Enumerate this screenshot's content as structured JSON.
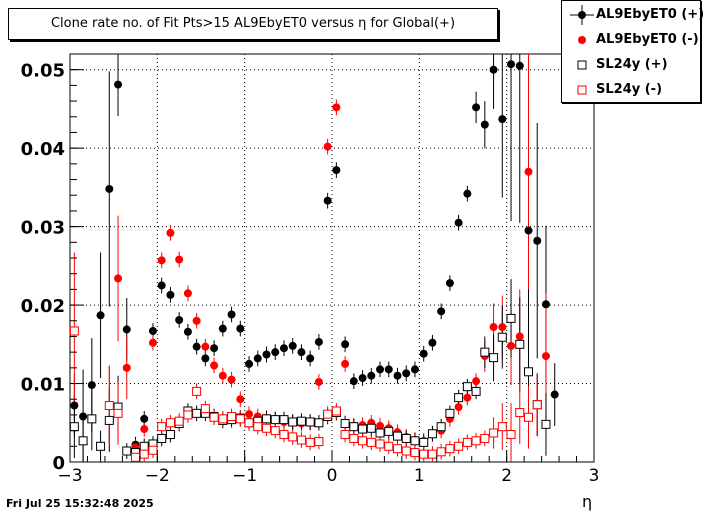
{
  "chart_data": {
    "type": "scatter",
    "title": "Clone rate no. of Fit Pts>15 AL9EbyET0 versus η for Global(+)",
    "xlabel": "η",
    "ylabel": "",
    "xlim": [
      -3,
      3
    ],
    "ylim": [
      0,
      0.052
    ],
    "x_ticks": [
      "−3",
      "−2",
      "−1",
      "0",
      "1",
      "2",
      "3"
    ],
    "y_ticks": [
      "0",
      "0.01",
      "0.02",
      "0.03",
      "0.04",
      "0.05"
    ],
    "grid": true,
    "legend_position": "top-right",
    "series": [
      {
        "name": "AL9EbyET0 (+)",
        "color": "#000000",
        "marker": "filled-circle",
        "points": [
          [
            -2.95,
            0.0072,
            0.004
          ],
          [
            -2.85,
            0.0058,
            0.006
          ],
          [
            -2.75,
            0.0098,
            0.006
          ],
          [
            -2.65,
            0.0187,
            0.008
          ],
          [
            -2.55,
            0.0348,
            0.015
          ],
          [
            -2.45,
            0.0481,
            0.004
          ],
          [
            -2.35,
            0.0169,
            0.004
          ],
          [
            -2.25,
            0.0022,
            0.001
          ],
          [
            -2.15,
            0.0055,
            0.001
          ],
          [
            -2.05,
            0.0167,
            0.001
          ],
          [
            -1.95,
            0.0225,
            0.001
          ],
          [
            -1.85,
            0.0213,
            0.001
          ],
          [
            -1.75,
            0.0181,
            0.001
          ],
          [
            -1.65,
            0.0166,
            0.001
          ],
          [
            -1.55,
            0.0147,
            0.001
          ],
          [
            -1.45,
            0.0132,
            0.001
          ],
          [
            -1.35,
            0.0145,
            0.001
          ],
          [
            -1.25,
            0.017,
            0.001
          ],
          [
            -1.15,
            0.0188,
            0.001
          ],
          [
            -1.05,
            0.017,
            0.001
          ],
          [
            -0.95,
            0.0125,
            0.001
          ],
          [
            -0.85,
            0.0132,
            0.001
          ],
          [
            -0.75,
            0.0137,
            0.001
          ],
          [
            -0.65,
            0.014,
            0.001
          ],
          [
            -0.55,
            0.0145,
            0.001
          ],
          [
            -0.45,
            0.0148,
            0.001
          ],
          [
            -0.35,
            0.014,
            0.001
          ],
          [
            -0.25,
            0.0132,
            0.001
          ],
          [
            -0.15,
            0.0153,
            0.001
          ],
          [
            -0.05,
            0.0333,
            0.001
          ],
          [
            0.05,
            0.0372,
            0.001
          ],
          [
            0.15,
            0.015,
            0.001
          ],
          [
            0.25,
            0.0103,
            0.001
          ],
          [
            0.35,
            0.0107,
            0.001
          ],
          [
            0.45,
            0.011,
            0.001
          ],
          [
            0.55,
            0.0118,
            0.001
          ],
          [
            0.65,
            0.0118,
            0.001
          ],
          [
            0.75,
            0.011,
            0.001
          ],
          [
            0.85,
            0.0113,
            0.001
          ],
          [
            0.95,
            0.0118,
            0.001
          ],
          [
            1.05,
            0.0138,
            0.001
          ],
          [
            1.15,
            0.0152,
            0.001
          ],
          [
            1.25,
            0.0192,
            0.001
          ],
          [
            1.35,
            0.0228,
            0.001
          ],
          [
            1.45,
            0.0305,
            0.001
          ],
          [
            1.55,
            0.0342,
            0.001
          ],
          [
            1.65,
            0.0452,
            0.002
          ],
          [
            1.75,
            0.043,
            0.003
          ],
          [
            1.85,
            0.05,
            0.005
          ],
          [
            1.95,
            0.0437,
            0.01
          ],
          [
            2.05,
            0.0507,
            0.02
          ],
          [
            2.15,
            0.0505,
            0.02
          ],
          [
            2.25,
            0.0295,
            0.015
          ],
          [
            2.35,
            0.0282,
            0.015
          ],
          [
            2.45,
            0.0201,
            0.01
          ],
          [
            2.55,
            0.0086,
            0.004
          ]
        ]
      },
      {
        "name": "AL9EbyET0 (-)",
        "color": "#ff0000",
        "marker": "filled-circle",
        "points": [
          [
            -2.55,
            0.0073,
            0.005
          ],
          [
            -2.45,
            0.0234,
            0.008
          ],
          [
            -2.35,
            0.012,
            0.004
          ],
          [
            -2.25,
            0.0019,
            0.001
          ],
          [
            -2.15,
            0.0042,
            0.001
          ],
          [
            -2.05,
            0.0152,
            0.001
          ],
          [
            -1.95,
            0.0257,
            0.001
          ],
          [
            -1.85,
            0.0292,
            0.001
          ],
          [
            -1.75,
            0.0258,
            0.001
          ],
          [
            -1.65,
            0.0215,
            0.001
          ],
          [
            -1.55,
            0.018,
            0.001
          ],
          [
            -1.45,
            0.0147,
            0.001
          ],
          [
            -1.35,
            0.0123,
            0.001
          ],
          [
            -1.25,
            0.011,
            0.001
          ],
          [
            -1.15,
            0.0105,
            0.001
          ],
          [
            -1.05,
            0.008,
            0.001
          ],
          [
            -0.95,
            0.0061,
            0.001
          ],
          [
            -0.85,
            0.0058,
            0.001
          ],
          [
            -0.75,
            0.0056,
            0.001
          ],
          [
            -0.65,
            0.0054,
            0.001
          ],
          [
            -0.55,
            0.0051,
            0.001
          ],
          [
            -0.45,
            0.005,
            0.001
          ],
          [
            -0.35,
            0.0049,
            0.001
          ],
          [
            -0.25,
            0.005,
            0.001
          ],
          [
            -0.15,
            0.0102,
            0.001
          ],
          [
            -0.05,
            0.0402,
            0.001
          ],
          [
            0.05,
            0.0452,
            0.001
          ],
          [
            0.15,
            0.0125,
            0.001
          ],
          [
            0.25,
            0.0046,
            0.001
          ],
          [
            0.35,
            0.0047,
            0.001
          ],
          [
            0.45,
            0.005,
            0.001
          ],
          [
            0.55,
            0.0046,
            0.001
          ],
          [
            0.65,
            0.0043,
            0.001
          ],
          [
            0.75,
            0.0038,
            0.001
          ],
          [
            0.85,
            0.0032,
            0.001
          ],
          [
            0.95,
            0.0028,
            0.001
          ],
          [
            1.05,
            0.0027,
            0.001
          ],
          [
            1.15,
            0.0036,
            0.001
          ],
          [
            1.25,
            0.004,
            0.001
          ],
          [
            1.35,
            0.0055,
            0.001
          ],
          [
            1.45,
            0.007,
            0.001
          ],
          [
            1.55,
            0.0082,
            0.001
          ],
          [
            1.65,
            0.0103,
            0.001
          ],
          [
            1.75,
            0.0135,
            0.002
          ],
          [
            1.85,
            0.0172,
            0.003
          ],
          [
            1.95,
            0.0172,
            0.004
          ],
          [
            2.05,
            0.0148,
            0.005
          ],
          [
            2.15,
            0.016,
            0.006
          ],
          [
            2.25,
            0.037,
            0.015
          ],
          [
            2.35,
            0.0073,
            0.004
          ],
          [
            2.45,
            0.0135,
            0.008
          ]
        ]
      },
      {
        "name": "SL24y (+)",
        "color": "#000000",
        "marker": "open-square",
        "points": [
          [
            -2.95,
            0.0045,
            0.004
          ],
          [
            -2.85,
            0.0027,
            0.003
          ],
          [
            -2.75,
            0.0055,
            0.004
          ],
          [
            -2.65,
            0.002,
            0.002
          ],
          [
            -2.55,
            0.0053,
            0.004
          ],
          [
            -2.45,
            0.007,
            0.004
          ],
          [
            -2.35,
            0.0014,
            0.001
          ],
          [
            -2.25,
            0.0012,
            0.001
          ],
          [
            -2.15,
            0.002,
            0.001
          ],
          [
            -2.05,
            0.0023,
            0.001
          ],
          [
            -1.95,
            0.003,
            0.001
          ],
          [
            -1.85,
            0.0035,
            0.001
          ],
          [
            -1.75,
            0.0049,
            0.001
          ],
          [
            -1.65,
            0.0065,
            0.001
          ],
          [
            -1.55,
            0.0062,
            0.001
          ],
          [
            -1.45,
            0.0062,
            0.001
          ],
          [
            -1.35,
            0.0058,
            0.001
          ],
          [
            -1.25,
            0.0053,
            0.001
          ],
          [
            -1.15,
            0.0054,
            0.001
          ],
          [
            -1.05,
            0.0056,
            0.001
          ],
          [
            -0.95,
            0.005,
            0.001
          ],
          [
            -0.85,
            0.0052,
            0.001
          ],
          [
            -0.75,
            0.0055,
            0.001
          ],
          [
            -0.65,
            0.0054,
            0.001
          ],
          [
            -0.55,
            0.0054,
            0.001
          ],
          [
            -0.45,
            0.0051,
            0.001
          ],
          [
            -0.35,
            0.0052,
            0.001
          ],
          [
            -0.25,
            0.0051,
            0.001
          ],
          [
            -0.15,
            0.005,
            0.001
          ],
          [
            -0.05,
            0.0058,
            0.001
          ],
          [
            0.05,
            0.0063,
            0.001
          ],
          [
            0.15,
            0.0049,
            0.001
          ],
          [
            0.25,
            0.0045,
            0.001
          ],
          [
            0.35,
            0.0042,
            0.001
          ],
          [
            0.45,
            0.0043,
            0.001
          ],
          [
            0.55,
            0.0037,
            0.001
          ],
          [
            0.65,
            0.0039,
            0.001
          ],
          [
            0.75,
            0.0033,
            0.001
          ],
          [
            0.85,
            0.003,
            0.001
          ],
          [
            0.95,
            0.0027,
            0.001
          ],
          [
            1.05,
            0.0025,
            0.001
          ],
          [
            1.15,
            0.0036,
            0.001
          ],
          [
            1.25,
            0.0045,
            0.001
          ],
          [
            1.35,
            0.0062,
            0.001
          ],
          [
            1.45,
            0.0082,
            0.001
          ],
          [
            1.55,
            0.0096,
            0.001
          ],
          [
            1.65,
            0.009,
            0.001
          ],
          [
            1.75,
            0.014,
            0.002
          ],
          [
            1.85,
            0.0133,
            0.003
          ],
          [
            1.95,
            0.0159,
            0.004
          ],
          [
            2.05,
            0.0183,
            0.005
          ],
          [
            2.15,
            0.015,
            0.006
          ],
          [
            2.25,
            0.0115,
            0.005
          ],
          [
            2.35,
            0.0073,
            0.004
          ],
          [
            2.45,
            0.0048,
            0.004
          ]
        ]
      },
      {
        "name": "SL24y (-)",
        "color": "#ff0000",
        "marker": "open-square",
        "points": [
          [
            -2.95,
            0.0167,
            0.01
          ],
          [
            -2.55,
            0.0072,
            0.005
          ],
          [
            -2.45,
            0.0062,
            0.004
          ],
          [
            -2.25,
            0.0006,
            0.001
          ],
          [
            -2.15,
            0.001,
            0.001
          ],
          [
            -2.05,
            0.0015,
            0.001
          ],
          [
            -1.95,
            0.0045,
            0.001
          ],
          [
            -1.85,
            0.005,
            0.001
          ],
          [
            -1.75,
            0.0052,
            0.001
          ],
          [
            -1.65,
            0.006,
            0.001
          ],
          [
            -1.55,
            0.009,
            0.001
          ],
          [
            -1.45,
            0.0068,
            0.001
          ],
          [
            -1.35,
            0.0057,
            0.001
          ],
          [
            -1.25,
            0.0055,
            0.001
          ],
          [
            -1.15,
            0.0058,
            0.001
          ],
          [
            -1.05,
            0.0055,
            0.001
          ],
          [
            -0.95,
            0.005,
            0.001
          ],
          [
            -0.85,
            0.0045,
            0.001
          ],
          [
            -0.75,
            0.0043,
            0.001
          ],
          [
            -0.65,
            0.004,
            0.001
          ],
          [
            -0.55,
            0.0035,
            0.001
          ],
          [
            -0.45,
            0.0032,
            0.001
          ],
          [
            -0.35,
            0.0028,
            0.001
          ],
          [
            -0.25,
            0.0025,
            0.001
          ],
          [
            -0.15,
            0.0026,
            0.001
          ],
          [
            -0.05,
            0.0061,
            0.001
          ],
          [
            0.05,
            0.0065,
            0.001
          ],
          [
            0.15,
            0.0035,
            0.001
          ],
          [
            0.25,
            0.003,
            0.001
          ],
          [
            0.35,
            0.0027,
            0.001
          ],
          [
            0.45,
            0.0025,
            0.001
          ],
          [
            0.55,
            0.0023,
            0.001
          ],
          [
            0.65,
            0.002,
            0.001
          ],
          [
            0.75,
            0.0017,
            0.001
          ],
          [
            0.85,
            0.0014,
            0.001
          ],
          [
            0.95,
            0.0012,
            0.001
          ],
          [
            1.05,
            0.001,
            0.001
          ],
          [
            1.15,
            0.001,
            0.001
          ],
          [
            1.25,
            0.0013,
            0.001
          ],
          [
            1.35,
            0.0017,
            0.001
          ],
          [
            1.45,
            0.002,
            0.001
          ],
          [
            1.55,
            0.0025,
            0.001
          ],
          [
            1.65,
            0.0027,
            0.001
          ],
          [
            1.75,
            0.003,
            0.001
          ],
          [
            1.85,
            0.0037,
            0.002
          ],
          [
            1.95,
            0.0045,
            0.003
          ],
          [
            2.05,
            0.0035,
            0.004
          ],
          [
            2.15,
            0.0063,
            0.004
          ],
          [
            2.25,
            0.0057,
            0.004
          ],
          [
            2.35,
            0.0073,
            0.004
          ]
        ]
      }
    ]
  },
  "datestamp": "Fri Jul 25 15:32:48 2025"
}
